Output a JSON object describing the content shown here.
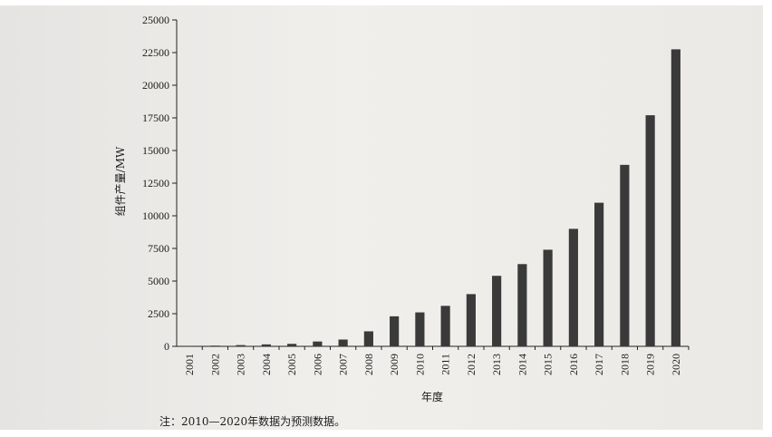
{
  "chart_data": {
    "type": "bar",
    "categories": [
      "2001",
      "2002",
      "2003",
      "2004",
      "2005",
      "2006",
      "2007",
      "2008",
      "2009",
      "2010",
      "2011",
      "2012",
      "2013",
      "2014",
      "2015",
      "2016",
      "2017",
      "2018",
      "2019",
      "2020"
    ],
    "values": [
      40,
      55,
      95,
      150,
      190,
      370,
      520,
      1150,
      2300,
      2600,
      3100,
      4000,
      5400,
      6300,
      7400,
      9000,
      11000,
      13900,
      17700,
      22750
    ],
    "xlabel": "年度",
    "ylabel": "组件产量/MW",
    "ylim": [
      0,
      25000
    ],
    "yticks": [
      0,
      2500,
      5000,
      7500,
      10000,
      12500,
      15000,
      17500,
      20000,
      22500,
      25000
    ],
    "grid": false,
    "bar_color": "#3a3a3a"
  },
  "note": "注：2010—2020年数据为预测数据。"
}
